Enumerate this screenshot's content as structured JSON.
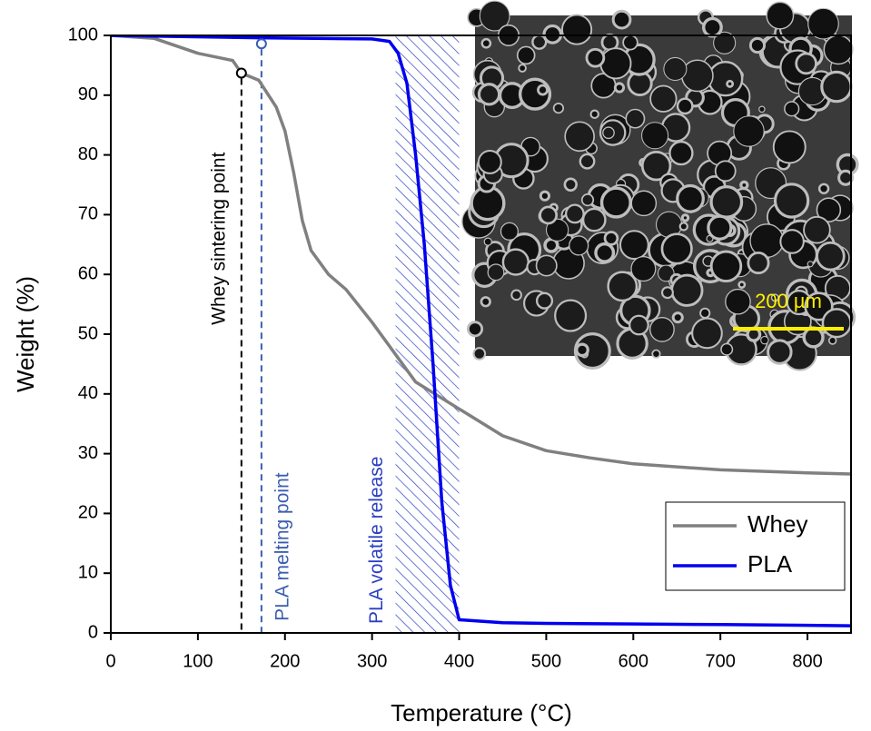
{
  "chart_data": {
    "type": "line",
    "x_label": "Temperature (°C)",
    "y_label": "Weight (%)",
    "xlim": [
      0,
      850
    ],
    "xticks": [
      0,
      100,
      200,
      300,
      400,
      500,
      600,
      700,
      800
    ],
    "ylim": [
      0,
      100
    ],
    "yticks": [
      0,
      10,
      20,
      30,
      40,
      50,
      60,
      70,
      80,
      90,
      100
    ],
    "legend": "lower right",
    "series": [
      {
        "name": "Whey",
        "color": "#808080",
        "x": [
          0,
          50,
          100,
          140,
          150,
          170,
          190,
          200,
          210,
          220,
          230,
          250,
          270,
          300,
          330,
          350,
          400,
          450,
          500,
          550,
          600,
          700,
          800,
          850
        ],
        "values": [
          100,
          99.5,
          97,
          95.8,
          93.7,
          92.5,
          88,
          84,
          77,
          69,
          64,
          60,
          57.5,
          52,
          46,
          42,
          37.5,
          33,
          30.5,
          29.3,
          28.3,
          27.3,
          26.8,
          26.6
        ]
      },
      {
        "name": "PLA",
        "color": "#0000ee",
        "x": [
          0,
          170,
          300,
          320,
          330,
          340,
          350,
          360,
          370,
          380,
          390,
          400,
          450,
          500,
          600,
          700,
          850
        ],
        "values": [
          100,
          99.6,
          99.4,
          99,
          97,
          92,
          80,
          65,
          45,
          22,
          8,
          2.2,
          1.7,
          1.6,
          1.5,
          1.4,
          1.2
        ]
      }
    ],
    "annotations": [
      {
        "text": "Whey sintering point",
        "x": 150,
        "y": 93.7,
        "color": "#000000"
      },
      {
        "text": "PLA melting point",
        "x": 173,
        "y": 98.6,
        "color": "#3a5fb0"
      }
    ],
    "span": {
      "text": "PLA volatile release",
      "x": [
        327,
        400
      ],
      "color": "#2a3fc0"
    },
    "inset": {
      "scale_label": "200 µm",
      "color": "#ffee00"
    }
  }
}
